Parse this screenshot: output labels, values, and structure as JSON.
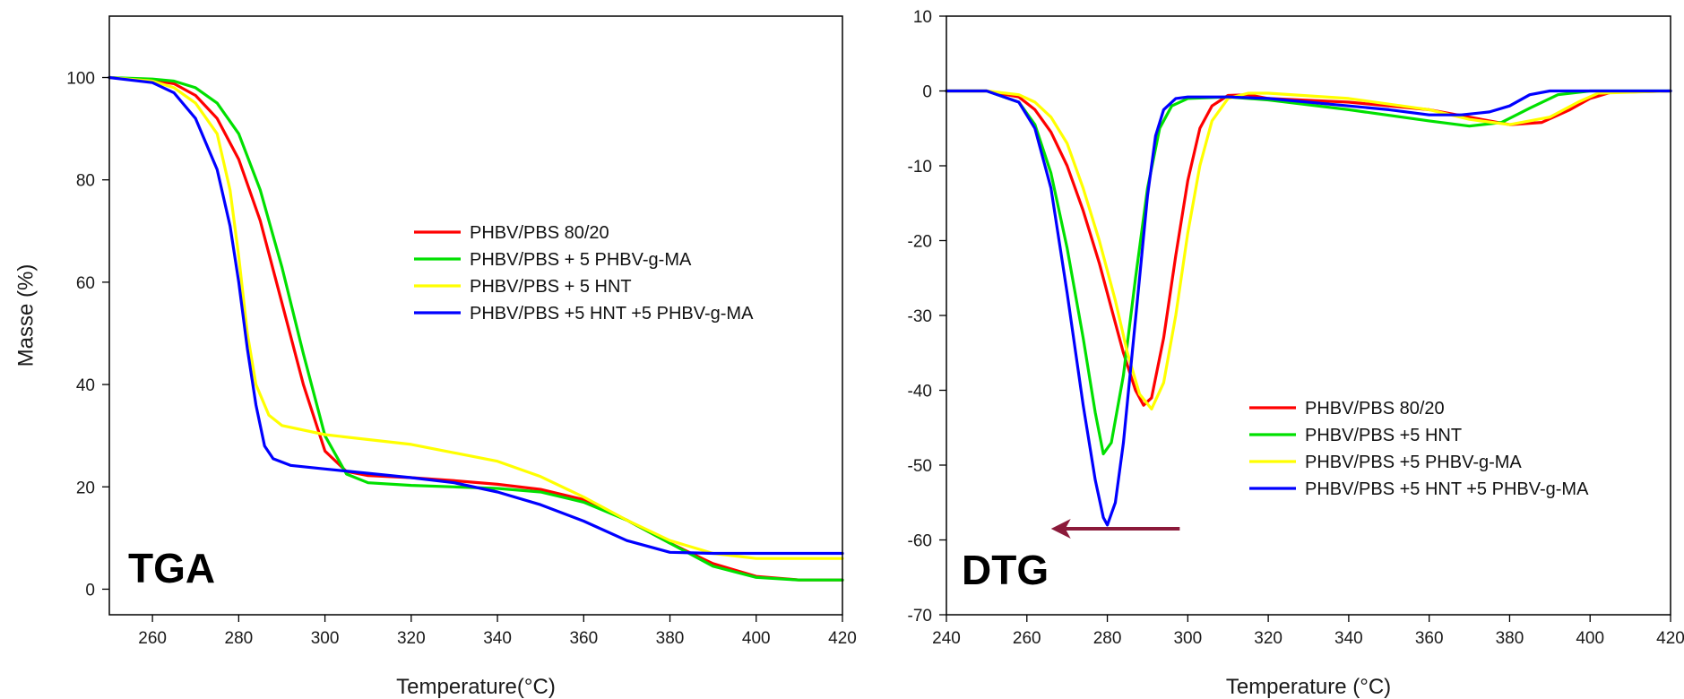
{
  "chart_data": [
    {
      "type": "line",
      "panel_label": "TGA",
      "xlabel": "Temperature(°C)",
      "ylabel": "Masse (%)",
      "xlim": [
        250,
        420
      ],
      "ylim": [
        -5,
        112
      ],
      "xticks": [
        260,
        280,
        300,
        320,
        340,
        360,
        380,
        400,
        420
      ],
      "yticks": [
        0,
        20,
        40,
        60,
        80,
        100
      ],
      "grid": false,
      "legend_position": "center-right",
      "series": [
        {
          "name": "PHBV/PBS 80/20",
          "color": "#ff0000",
          "points": [
            [
              250,
              100
            ],
            [
              260,
              99.5
            ],
            [
              265,
              98.8
            ],
            [
              270,
              96.5
            ],
            [
              275,
              92
            ],
            [
              280,
              84
            ],
            [
              285,
              72
            ],
            [
              290,
              56
            ],
            [
              295,
              40
            ],
            [
              300,
              27
            ],
            [
              305,
              23
            ],
            [
              310,
              22.2
            ],
            [
              320,
              21.8
            ],
            [
              330,
              21.2
            ],
            [
              340,
              20.5
            ],
            [
              350,
              19.5
            ],
            [
              360,
              17.5
            ],
            [
              370,
              13.5
            ],
            [
              380,
              9
            ],
            [
              390,
              5
            ],
            [
              400,
              2.5
            ],
            [
              410,
              1.8
            ],
            [
              420,
              1.8
            ]
          ]
        },
        {
          "name": "PHBV/PBS + 5 PHBV-g-MA",
          "color": "#00e000",
          "points": [
            [
              250,
              100
            ],
            [
              260,
              99.7
            ],
            [
              265,
              99.3
            ],
            [
              270,
              98
            ],
            [
              275,
              95
            ],
            [
              280,
              89
            ],
            [
              285,
              78
            ],
            [
              290,
              63
            ],
            [
              295,
              46
            ],
            [
              300,
              30
            ],
            [
              305,
              22.5
            ],
            [
              310,
              20.8
            ],
            [
              320,
              20.3
            ],
            [
              330,
              20
            ],
            [
              340,
              19.7
            ],
            [
              350,
              19
            ],
            [
              360,
              17
            ],
            [
              370,
              13.5
            ],
            [
              380,
              9
            ],
            [
              390,
              4.5
            ],
            [
              400,
              2.3
            ],
            [
              410,
              1.8
            ],
            [
              420,
              1.8
            ]
          ]
        },
        {
          "name": "PHBV/PBS + 5 HNT",
          "color": "#ffff00",
          "points": [
            [
              250,
              100
            ],
            [
              260,
              99.3
            ],
            [
              265,
              98
            ],
            [
              270,
              95
            ],
            [
              275,
              89
            ],
            [
              278,
              78
            ],
            [
              280,
              65
            ],
            [
              282,
              50
            ],
            [
              284,
              40
            ],
            [
              287,
              34
            ],
            [
              290,
              32
            ],
            [
              300,
              30.2
            ],
            [
              320,
              28.3
            ],
            [
              340,
              25
            ],
            [
              350,
              22
            ],
            [
              360,
              18
            ],
            [
              370,
              13.5
            ],
            [
              380,
              9.5
            ],
            [
              390,
              7
            ],
            [
              400,
              6
            ],
            [
              420,
              6
            ]
          ]
        },
        {
          "name": "PHBV/PBS +5 HNT +5 PHBV-g-MA",
          "color": "#0000ff",
          "points": [
            [
              250,
              100
            ],
            [
              260,
              99
            ],
            [
              265,
              97
            ],
            [
              270,
              92
            ],
            [
              275,
              82
            ],
            [
              278,
              71
            ],
            [
              280,
              60
            ],
            [
              282,
              47
            ],
            [
              284,
              36
            ],
            [
              286,
              28
            ],
            [
              288,
              25.5
            ],
            [
              292,
              24.2
            ],
            [
              300,
              23.5
            ],
            [
              320,
              21.8
            ],
            [
              330,
              20.8
            ],
            [
              340,
              19
            ],
            [
              350,
              16.5
            ],
            [
              360,
              13.3
            ],
            [
              370,
              9.5
            ],
            [
              380,
              7.2
            ],
            [
              390,
              7
            ],
            [
              420,
              7
            ]
          ]
        }
      ]
    },
    {
      "type": "line",
      "panel_label": "DTG",
      "xlabel": "Temperature (°C)",
      "ylabel": "",
      "xlim": [
        240,
        420
      ],
      "ylim": [
        -70,
        10
      ],
      "xticks": [
        240,
        260,
        280,
        300,
        320,
        340,
        360,
        380,
        400,
        420
      ],
      "yticks": [
        10,
        0,
        -10,
        -20,
        -30,
        -40,
        -50,
        -60,
        -70
      ],
      "grid": false,
      "legend_position": "lower-right",
      "annotation": {
        "type": "arrow",
        "color": "#8b1a3a",
        "from": [
          298,
          -58.5
        ],
        "to": [
          266,
          -58.5
        ]
      },
      "series": [
        {
          "name": "PHBV/PBS 80/20",
          "color": "#ff0000",
          "points": [
            [
              240,
              0
            ],
            [
              250,
              0
            ],
            [
              258,
              -0.8
            ],
            [
              262,
              -2.5
            ],
            [
              266,
              -5.5
            ],
            [
              270,
              -10
            ],
            [
              274,
              -16
            ],
            [
              278,
              -23
            ],
            [
              281,
              -29
            ],
            [
              284,
              -35
            ],
            [
              287,
              -40
            ],
            [
              289,
              -42
            ],
            [
              291,
              -41
            ],
            [
              294,
              -33
            ],
            [
              297,
              -22
            ],
            [
              300,
              -12
            ],
            [
              303,
              -5
            ],
            [
              306,
              -2
            ],
            [
              310,
              -0.6
            ],
            [
              315,
              -0.5
            ],
            [
              320,
              -1
            ],
            [
              340,
              -1.5
            ],
            [
              360,
              -2.5
            ],
            [
              370,
              -3.5
            ],
            [
              380,
              -4.5
            ],
            [
              388,
              -4.2
            ],
            [
              395,
              -2.5
            ],
            [
              400,
              -1
            ],
            [
              405,
              -0.2
            ],
            [
              420,
              0
            ]
          ]
        },
        {
          "name": "PHBV/PBS +5 HNT",
          "color": "#00e000",
          "points": [
            [
              240,
              0
            ],
            [
              250,
              0
            ],
            [
              258,
              -1.5
            ],
            [
              262,
              -4.5
            ],
            [
              266,
              -11
            ],
            [
              270,
              -21
            ],
            [
              274,
              -33
            ],
            [
              277,
              -43
            ],
            [
              279,
              -48.5
            ],
            [
              281,
              -47
            ],
            [
              284,
              -38
            ],
            [
              287,
              -25
            ],
            [
              290,
              -13
            ],
            [
              293,
              -5
            ],
            [
              296,
              -2
            ],
            [
              300,
              -1
            ],
            [
              310,
              -0.8
            ],
            [
              320,
              -1.2
            ],
            [
              340,
              -2.5
            ],
            [
              360,
              -4
            ],
            [
              370,
              -4.7
            ],
            [
              378,
              -4.2
            ],
            [
              385,
              -2.3
            ],
            [
              392,
              -0.5
            ],
            [
              400,
              0
            ],
            [
              420,
              0
            ]
          ]
        },
        {
          "name": "PHBV/PBS +5 PHBV-g-MA",
          "color": "#ffff00",
          "points": [
            [
              240,
              0
            ],
            [
              250,
              0
            ],
            [
              258,
              -0.5
            ],
            [
              262,
              -1.5
            ],
            [
              266,
              -3.5
            ],
            [
              270,
              -7
            ],
            [
              274,
              -13
            ],
            [
              278,
              -20
            ],
            [
              282,
              -28
            ],
            [
              285,
              -35
            ],
            [
              288,
              -40.5
            ],
            [
              291,
              -42.5
            ],
            [
              294,
              -39
            ],
            [
              297,
              -30
            ],
            [
              300,
              -19
            ],
            [
              303,
              -10
            ],
            [
              306,
              -4
            ],
            [
              310,
              -1
            ],
            [
              315,
              -0.3
            ],
            [
              320,
              -0.3
            ],
            [
              340,
              -1
            ],
            [
              360,
              -2.5
            ],
            [
              370,
              -3.8
            ],
            [
              380,
              -4.5
            ],
            [
              390,
              -3.5
            ],
            [
              397,
              -1.5
            ],
            [
              402,
              -0.3
            ],
            [
              420,
              0
            ]
          ]
        },
        {
          "name": "PHBV/PBS +5 HNT +5 PHBV-g-MA",
          "color": "#0000ff",
          "points": [
            [
              240,
              0
            ],
            [
              250,
              0
            ],
            [
              258,
              -1.5
            ],
            [
              262,
              -5
            ],
            [
              266,
              -13
            ],
            [
              270,
              -27
            ],
            [
              274,
              -42
            ],
            [
              277,
              -52
            ],
            [
              279,
              -57
            ],
            [
              280,
              -58
            ],
            [
              282,
              -55
            ],
            [
              284,
              -47
            ],
            [
              286,
              -36
            ],
            [
              288,
              -25
            ],
            [
              290,
              -14
            ],
            [
              292,
              -6
            ],
            [
              294,
              -2.5
            ],
            [
              297,
              -1
            ],
            [
              300,
              -0.8
            ],
            [
              310,
              -0.8
            ],
            [
              320,
              -1
            ],
            [
              340,
              -2
            ],
            [
              350,
              -2.5
            ],
            [
              360,
              -3.2
            ],
            [
              368,
              -3.2
            ],
            [
              375,
              -2.8
            ],
            [
              380,
              -2
            ],
            [
              385,
              -0.5
            ],
            [
              390,
              0
            ],
            [
              420,
              0
            ]
          ]
        }
      ]
    }
  ]
}
